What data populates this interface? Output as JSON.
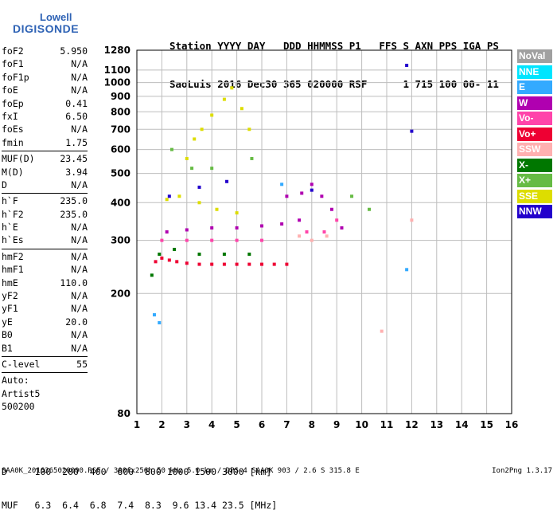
{
  "logo": {
    "top": "Lowell",
    "bottom": "DIGISONDE"
  },
  "header": {
    "line1": "Station YYYY DAY   DDD HHMMSS P1   FFS S AXN PPS IGA PS",
    "line2": "SaoLuis 2016 Dec30 365 020000 RSF      1 715 100 00- 11"
  },
  "params": {
    "group1": [
      {
        "k": "foF2",
        "v": "5.950"
      },
      {
        "k": "foF1",
        "v": "N/A"
      },
      {
        "k": "foF1p",
        "v": "N/A"
      },
      {
        "k": "foE",
        "v": "N/A"
      },
      {
        "k": "foEp",
        "v": "0.41"
      },
      {
        "k": "fxI",
        "v": "6.50"
      },
      {
        "k": "foEs",
        "v": "N/A"
      },
      {
        "k": "fmin",
        "v": "1.75"
      }
    ],
    "group2": [
      {
        "k": "MUF(D)",
        "v": "23.45"
      },
      {
        "k": "M(D)",
        "v": "3.94"
      },
      {
        "k": "D",
        "v": "N/A"
      }
    ],
    "group3": [
      {
        "k": "h`F",
        "v": "235.0"
      },
      {
        "k": "h`F2",
        "v": "235.0"
      },
      {
        "k": "h`E",
        "v": "N/A"
      },
      {
        "k": "h`Es",
        "v": "N/A"
      }
    ],
    "group4": [
      {
        "k": "hmF2",
        "v": "N/A"
      },
      {
        "k": "hmF1",
        "v": "N/A"
      },
      {
        "k": "hmE",
        "v": "110.0"
      },
      {
        "k": "yF2",
        "v": "N/A"
      },
      {
        "k": "yF1",
        "v": "N/A"
      },
      {
        "k": "yE",
        "v": "20.0"
      },
      {
        "k": "B0",
        "v": "N/A"
      },
      {
        "k": "B1",
        "v": "N/A"
      }
    ],
    "group5": [
      {
        "k": "C-level",
        "v": "55"
      }
    ],
    "auto": [
      "Auto:",
      "Artist5",
      "500200"
    ]
  },
  "legend": [
    {
      "label": "NoVal",
      "color": "#a0a0a0"
    },
    {
      "label": "NNE",
      "color": "#00e5ff"
    },
    {
      "label": "E",
      "color": "#33aaff"
    },
    {
      "label": "W",
      "color": "#b000b0"
    },
    {
      "label": "Vo-",
      "color": "#ff44aa"
    },
    {
      "label": "Vo+",
      "color": "#ee0033"
    },
    {
      "label": "SSW",
      "color": "#ffb0b0"
    },
    {
      "label": "X-",
      "color": "#007700"
    },
    {
      "label": "X+",
      "color": "#66bb44"
    },
    {
      "label": "SSE",
      "color": "#dddd00"
    },
    {
      "label": "NNW",
      "color": "#2200cc"
    }
  ],
  "footer": {
    "line1": "D     100  200  400  600  800 1000 1500 3000 [km]",
    "line2": "MUF   6.3  6.4  6.8  7.4  8.3  9.6 13.4 23.5 [MHz]",
    "source": "SAA0K_2016365020000.RSF / 300fx256h 50 kHz 5.0 km / DPS-4 SAA0K 903 / 2.6 S 315.8 E",
    "version": "Ion2Png 1.3.17"
  },
  "chart_data": {
    "type": "scatter",
    "title": "",
    "xlabel": "",
    "ylabel": "",
    "xlim": [
      1,
      16
    ],
    "ylim": [
      80,
      1280
    ],
    "yscale": "log",
    "xticks": [
      1,
      2,
      3,
      4,
      5,
      6,
      7,
      8,
      9,
      10,
      11,
      12,
      13,
      14,
      15,
      16
    ],
    "yticks": [
      80,
      200,
      300,
      400,
      500,
      600,
      700,
      800,
      900,
      1000,
      1100,
      1280
    ],
    "grid": true,
    "legend_position": "right",
    "series": [
      {
        "color": "#ee0033",
        "points": [
          [
            1.75,
            255
          ],
          [
            2.0,
            262
          ],
          [
            2.3,
            258
          ],
          [
            2.6,
            255
          ],
          [
            3.0,
            252
          ],
          [
            3.5,
            250
          ],
          [
            4.0,
            250
          ],
          [
            4.5,
            250
          ],
          [
            5.0,
            250
          ],
          [
            5.5,
            250
          ],
          [
            6.0,
            250
          ],
          [
            6.5,
            250
          ],
          [
            7.0,
            250
          ]
        ]
      },
      {
        "color": "#b000b0",
        "points": [
          [
            2.2,
            320
          ],
          [
            3.0,
            325
          ],
          [
            4.0,
            330
          ],
          [
            5.0,
            330
          ],
          [
            6.0,
            335
          ],
          [
            6.8,
            340
          ],
          [
            7.0,
            420
          ],
          [
            7.6,
            430
          ],
          [
            8.0,
            460
          ],
          [
            8.4,
            420
          ],
          [
            8.8,
            380
          ],
          [
            9.2,
            330
          ],
          [
            7.5,
            350
          ]
        ]
      },
      {
        "color": "#dddd00",
        "points": [
          [
            2.2,
            410
          ],
          [
            2.7,
            420
          ],
          [
            3.0,
            560
          ],
          [
            3.3,
            650
          ],
          [
            3.6,
            700
          ],
          [
            4.0,
            780
          ],
          [
            4.5,
            880
          ],
          [
            4.8,
            960
          ],
          [
            5.2,
            820
          ],
          [
            5.5,
            700
          ],
          [
            3.5,
            400
          ],
          [
            4.2,
            380
          ],
          [
            5.0,
            370
          ]
        ]
      },
      {
        "color": "#007700",
        "points": [
          [
            1.6,
            230
          ],
          [
            1.9,
            270
          ],
          [
            2.5,
            280
          ],
          [
            3.5,
            270
          ],
          [
            4.5,
            270
          ],
          [
            5.5,
            270
          ]
        ]
      },
      {
        "color": "#ff44aa",
        "points": [
          [
            2.0,
            300
          ],
          [
            3.0,
            300
          ],
          [
            4.0,
            300
          ],
          [
            5.0,
            300
          ],
          [
            6.0,
            300
          ],
          [
            7.8,
            320
          ],
          [
            8.5,
            320
          ],
          [
            9.0,
            350
          ]
        ]
      },
      {
        "color": "#66bb44",
        "points": [
          [
            2.4,
            600
          ],
          [
            3.2,
            520
          ],
          [
            4.0,
            520
          ],
          [
            5.6,
            560
          ],
          [
            9.6,
            420
          ],
          [
            10.3,
            380
          ]
        ]
      },
      {
        "color": "#2200cc",
        "points": [
          [
            2.3,
            420
          ],
          [
            3.5,
            450
          ],
          [
            4.6,
            470
          ],
          [
            8.0,
            440
          ],
          [
            11.8,
            1140
          ],
          [
            12.0,
            690
          ]
        ]
      },
      {
        "color": "#33aaff",
        "points": [
          [
            1.7,
            170
          ],
          [
            1.9,
            160
          ],
          [
            6.8,
            460
          ],
          [
            11.8,
            240
          ]
        ]
      },
      {
        "color": "#ffb0b0",
        "points": [
          [
            7.5,
            310
          ],
          [
            8.0,
            300
          ],
          [
            8.6,
            310
          ],
          [
            10.8,
            150
          ],
          [
            12.0,
            350
          ]
        ]
      }
    ]
  }
}
